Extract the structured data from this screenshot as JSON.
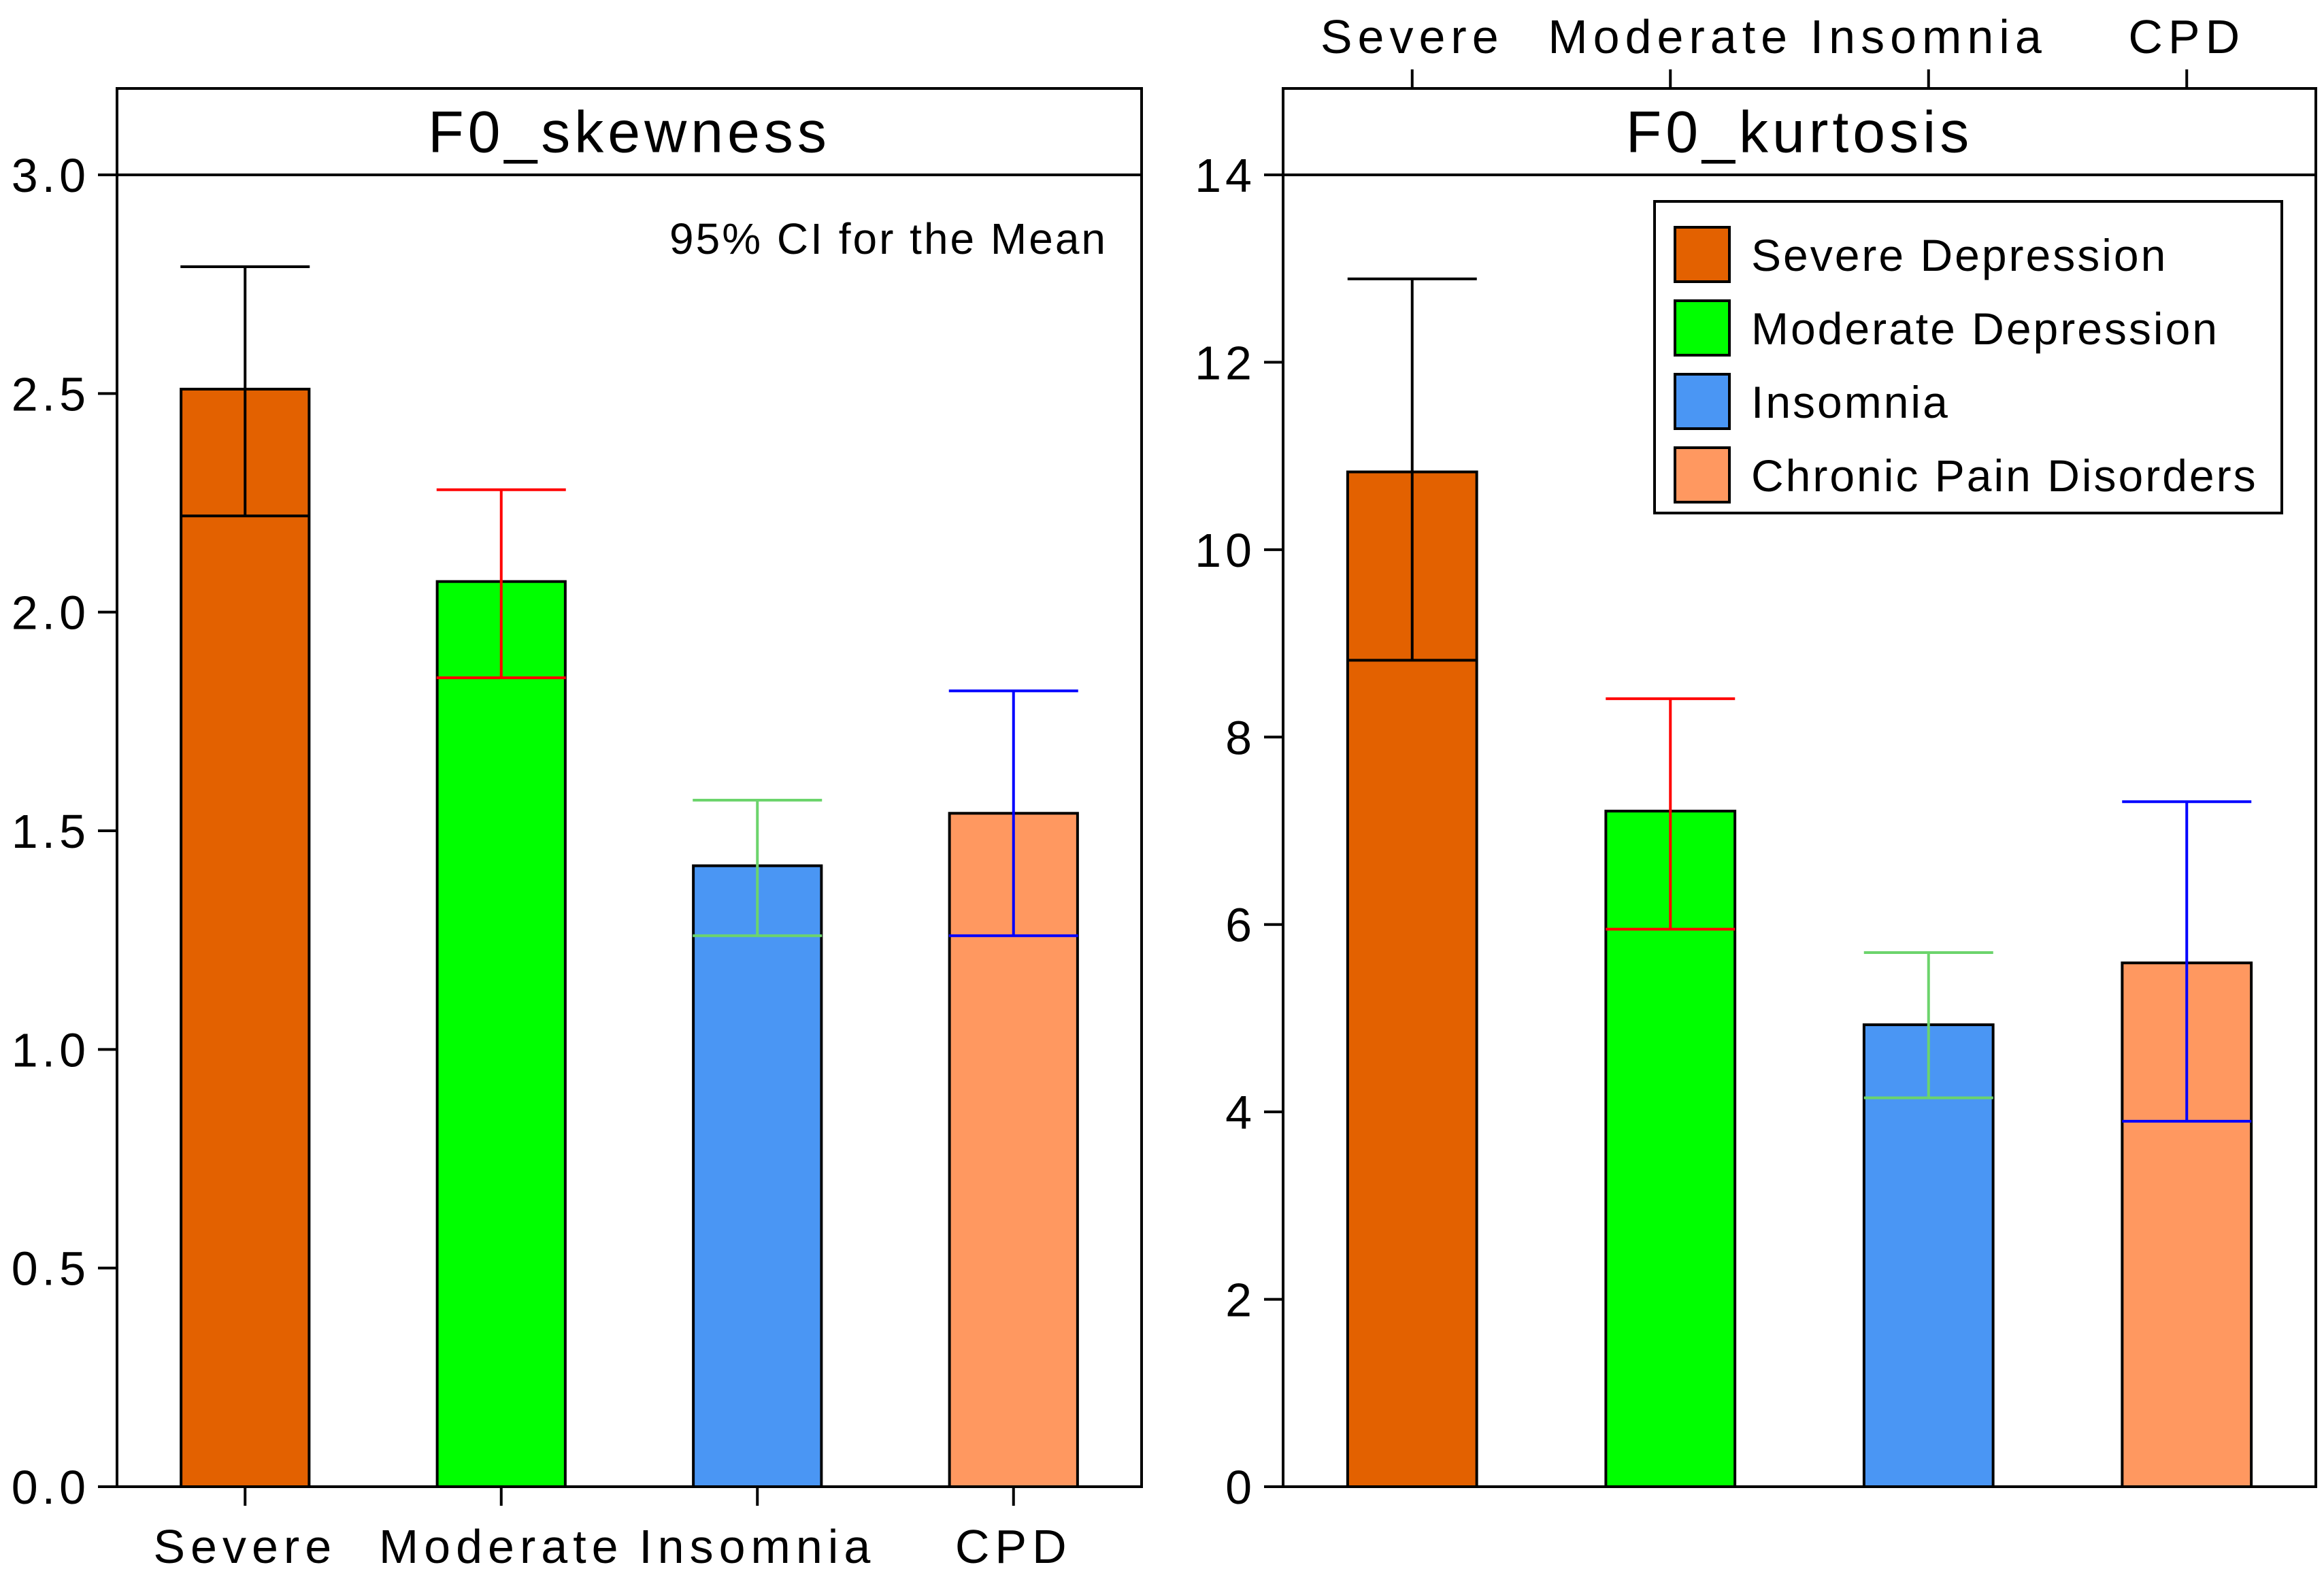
{
  "chart_data": [
    {
      "type": "bar",
      "title": "F0_skewness",
      "annotation": "95% CI for the Mean",
      "categories": [
        "Severe",
        "Moderate",
        "Insomnia",
        "CPD"
      ],
      "values": [
        2.51,
        2.07,
        1.42,
        1.54
      ],
      "ci_lower": [
        2.22,
        1.85,
        1.26,
        1.26
      ],
      "ci_upper": [
        2.79,
        2.28,
        1.57,
        1.82
      ],
      "ylim": [
        0,
        3.0
      ],
      "yticks": [
        {
          "value": 0.0,
          "label": "0.0"
        },
        {
          "value": 0.5,
          "label": "0.5"
        },
        {
          "value": 1.0,
          "label": "1.0"
        },
        {
          "value": 1.5,
          "label": "1.5"
        },
        {
          "value": 2.0,
          "label": "2.0"
        },
        {
          "value": 2.5,
          "label": "2.5"
        },
        {
          "value": 3.0,
          "label": "3.0"
        }
      ],
      "category_axis": "bottom",
      "grid": false
    },
    {
      "type": "bar",
      "title": "F0_kurtosis",
      "categories": [
        "Severe",
        "Moderate",
        "Insomnia",
        "CPD"
      ],
      "values": [
        10.83,
        7.21,
        4.93,
        5.59
      ],
      "ci_lower": [
        8.82,
        5.95,
        4.15,
        3.9
      ],
      "ci_upper": [
        12.89,
        8.41,
        5.7,
        7.31
      ],
      "ylim": [
        0,
        14
      ],
      "yticks": [
        {
          "value": 0,
          "label": "0"
        },
        {
          "value": 2,
          "label": "2"
        },
        {
          "value": 4,
          "label": "4"
        },
        {
          "value": 6,
          "label": "6"
        },
        {
          "value": 8,
          "label": "8"
        },
        {
          "value": 10,
          "label": "10"
        },
        {
          "value": 12,
          "label": "12"
        },
        {
          "value": 14,
          "label": "14"
        }
      ],
      "category_axis": "top",
      "grid": false
    }
  ],
  "legend": {
    "position": "top-right of F0_kurtosis panel",
    "items": [
      {
        "label": "Severe Depression",
        "color": "#E36100"
      },
      {
        "label": "Moderate Depression",
        "color": "#00FF00"
      },
      {
        "label": "Insomnia",
        "color": "#4A96F4"
      },
      {
        "label": "Chronic Pain Disorders",
        "color": "#FF9860"
      }
    ]
  },
  "colors": {
    "bars": [
      "#E36100",
      "#00FF00",
      "#4A96F4",
      "#FF9860"
    ],
    "error_bars": [
      "#000000",
      "#FF0000",
      "#6CD46C",
      "#0000FF"
    ]
  }
}
